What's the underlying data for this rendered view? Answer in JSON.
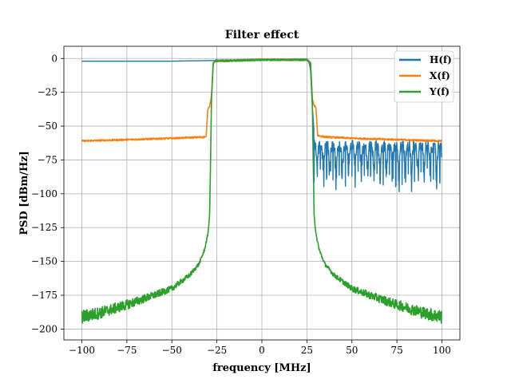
{
  "chart_data": {
    "type": "line",
    "title": "Filter effect",
    "xlabel": "frequency [MHz]",
    "ylabel": "PSD [dBm/Hz]",
    "xlim": [
      -110,
      110
    ],
    "ylim": [
      -208,
      9
    ],
    "xticks": [
      -100,
      -75,
      -50,
      -25,
      0,
      25,
      50,
      75,
      100
    ],
    "yticks": [
      0,
      -25,
      -50,
      -75,
      -100,
      -125,
      -150,
      -175,
      -200
    ],
    "xtick_labels": [
      "−100",
      "−75",
      "−50",
      "−25",
      "0",
      "25",
      "50",
      "75",
      "100"
    ],
    "ytick_labels": [
      "0",
      "−25",
      "−50",
      "−75",
      "−100",
      "−125",
      "−150",
      "−175",
      "−200"
    ],
    "grid": true,
    "legend_position": "top-right",
    "series": [
      {
        "name": "H(f)",
        "color": "#1f77b4",
        "x": [
          -100,
          -50,
          0,
          25,
          26,
          27,
          28,
          29,
          30,
          35,
          50,
          75,
          100
        ],
        "y": [
          -2,
          -2,
          -1,
          -1,
          -2,
          -8,
          -35,
          -55,
          -63,
          -65,
          -67,
          -68,
          -68
        ],
        "ripple_region": {
          "x_start": 29,
          "x_end": 100,
          "upper": -60,
          "lower_min": -95
        }
      },
      {
        "name": "X(f)",
        "color": "#ff7f0e",
        "x": [
          -100,
          -75,
          -50,
          -31,
          -30,
          -29,
          -28,
          -27,
          -26,
          -25,
          0,
          25,
          26,
          27,
          28,
          29,
          30,
          31,
          35,
          50,
          75,
          100
        ],
        "y": [
          -61,
          -60,
          -59,
          -58,
          -37,
          -35,
          -28,
          -3,
          -2,
          -2,
          -1,
          -1,
          -2,
          -3,
          -30,
          -35,
          -36,
          -57,
          -58,
          -59,
          -60,
          -61
        ]
      },
      {
        "name": "Y(f)",
        "color": "#2ca02c",
        "x": [
          -100,
          -90,
          -75,
          -60,
          -50,
          -40,
          -35,
          -32,
          -30,
          -29,
          -28.5,
          -28,
          -27,
          -26,
          -25,
          0,
          25,
          26,
          27,
          28,
          28.5,
          29,
          30,
          32,
          35,
          40,
          50,
          60,
          75,
          90,
          100
        ],
        "y": [
          -191,
          -188,
          -182,
          -175,
          -170,
          -160,
          -152,
          -142,
          -130,
          -115,
          -75,
          -30,
          -3,
          -2,
          -2,
          -1,
          -1,
          -2,
          -3,
          -30,
          -75,
          -115,
          -130,
          -142,
          -152,
          -160,
          -170,
          -175,
          -182,
          -188,
          -191
        ],
        "noise_band": {
          "edge_x": 100,
          "spread_at_edge": 10,
          "spread_near_band": 2
        }
      }
    ]
  }
}
